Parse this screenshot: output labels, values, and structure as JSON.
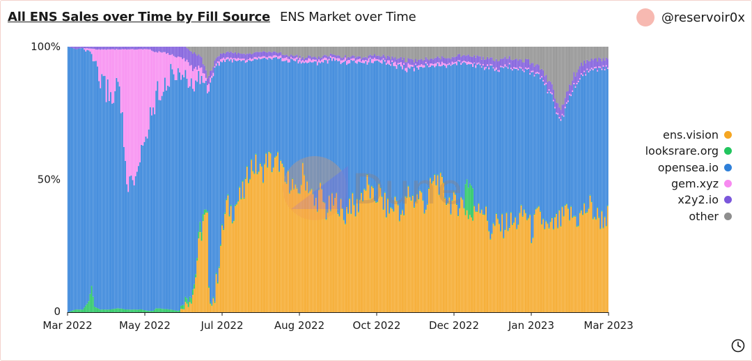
{
  "header": {
    "title": "All ENS Sales over Time by Fill Source",
    "subtitle": "ENS Market over Time",
    "author": "@reservoir0x"
  },
  "watermark": "Dune",
  "colors": {
    "ens.vision": "#F5A623",
    "looksrare.org": "#22C55E",
    "opensea.io": "#2F80D9",
    "gem.xyz": "#F78AF0",
    "x2y2.io": "#7B57DB",
    "other": "#8E8E8E"
  },
  "chart_data": {
    "type": "bar",
    "stacked": true,
    "normalized": true,
    "title": "All ENS Sales over Time by Fill Source",
    "ylim": [
      0,
      100
    ],
    "yticks": [
      "0",
      "50%",
      "100%"
    ],
    "xticks": [
      "Mar 2022",
      "May 2022",
      "Jul 2022",
      "Aug 2022",
      "Oct 2022",
      "Dec 2022",
      "Jan 2023",
      "Mar 2023"
    ],
    "legend_position": "right",
    "legend": [
      "ens.vision",
      "looksrare.org",
      "opensea.io",
      "gem.xyz",
      "x2y2.io",
      "other"
    ],
    "x_start": "2022-03-01",
    "x_end": "2023-03-05",
    "series_anchors": {
      "ens.vision": [
        [
          0,
          0
        ],
        [
          76,
          0
        ],
        [
          78,
          2
        ],
        [
          82,
          4
        ],
        [
          86,
          9
        ],
        [
          88,
          20
        ],
        [
          92,
          34
        ],
        [
          95,
          35
        ],
        [
          96,
          6
        ],
        [
          100,
          5
        ],
        [
          104,
          25
        ],
        [
          108,
          40
        ],
        [
          112,
          38
        ],
        [
          116,
          42
        ],
        [
          120,
          45
        ],
        [
          124,
          55
        ],
        [
          128,
          55
        ],
        [
          132,
          52
        ],
        [
          136,
          58
        ],
        [
          140,
          55
        ],
        [
          144,
          57
        ],
        [
          148,
          48
        ],
        [
          152,
          50
        ],
        [
          156,
          42
        ],
        [
          160,
          52
        ],
        [
          164,
          48
        ],
        [
          168,
          40
        ],
        [
          172,
          45
        ],
        [
          176,
          38
        ],
        [
          180,
          40
        ],
        [
          184,
          42
        ],
        [
          188,
          35
        ],
        [
          192,
          42
        ],
        [
          196,
          38
        ],
        [
          200,
          44
        ],
        [
          204,
          48
        ],
        [
          208,
          42
        ],
        [
          212,
          45
        ],
        [
          216,
          40
        ],
        [
          220,
          38
        ],
        [
          224,
          42
        ],
        [
          228,
          35
        ],
        [
          232,
          45
        ],
        [
          236,
          42
        ],
        [
          240,
          44
        ],
        [
          244,
          40
        ],
        [
          248,
          48
        ],
        [
          252,
          50
        ],
        [
          256,
          45
        ],
        [
          260,
          42
        ],
        [
          264,
          40
        ],
        [
          268,
          42
        ],
        [
          272,
          38
        ],
        [
          276,
          35
        ],
        [
          280,
          42
        ],
        [
          284,
          38
        ],
        [
          288,
          30
        ],
        [
          292,
          33
        ],
        [
          296,
          32
        ],
        [
          300,
          34
        ],
        [
          304,
          33
        ],
        [
          308,
          35
        ],
        [
          312,
          38
        ],
        [
          316,
          30
        ],
        [
          320,
          36
        ],
        [
          324,
          34
        ],
        [
          328,
          30
        ],
        [
          332,
          33
        ],
        [
          336,
          34
        ],
        [
          340,
          37
        ],
        [
          344,
          36
        ],
        [
          348,
          35
        ],
        [
          352,
          38
        ],
        [
          356,
          40
        ],
        [
          360,
          36
        ],
        [
          364,
          35
        ],
        [
          367,
          36
        ]
      ],
      "looksrare.org": [
        [
          0,
          0
        ],
        [
          5,
          1
        ],
        [
          10,
          1
        ],
        [
          14,
          4
        ],
        [
          16,
          10
        ],
        [
          18,
          2
        ],
        [
          22,
          1
        ],
        [
          28,
          1
        ],
        [
          34,
          1.5
        ],
        [
          40,
          1
        ],
        [
          45,
          1
        ],
        [
          50,
          1
        ],
        [
          55,
          0.5
        ],
        [
          58,
          0.5
        ],
        [
          60,
          1.5
        ],
        [
          70,
          1
        ],
        [
          75,
          0.5
        ],
        [
          80,
          2
        ],
        [
          85,
          2
        ],
        [
          88,
          1
        ],
        [
          90,
          4
        ],
        [
          95,
          0.5
        ],
        [
          100,
          0.5
        ],
        [
          110,
          0.5
        ],
        [
          130,
          0.3
        ],
        [
          150,
          0.3
        ],
        [
          170,
          0.3
        ],
        [
          200,
          0.3
        ],
        [
          230,
          0.3
        ],
        [
          270,
          0.3
        ],
        [
          271,
          12
        ],
        [
          276,
          12
        ],
        [
          277,
          0.3
        ],
        [
          300,
          0.3
        ],
        [
          367,
          0.3
        ]
      ],
      "gem.xyz": [
        [
          0,
          0
        ],
        [
          10,
          0
        ],
        [
          12,
          1
        ],
        [
          16,
          2
        ],
        [
          18,
          8
        ],
        [
          20,
          10
        ],
        [
          25,
          14
        ],
        [
          30,
          18
        ],
        [
          35,
          12
        ],
        [
          38,
          35
        ],
        [
          40,
          52
        ],
        [
          45,
          52
        ],
        [
          48,
          45
        ],
        [
          50,
          38
        ],
        [
          55,
          28
        ],
        [
          60,
          16
        ],
        [
          65,
          12
        ],
        [
          70,
          8
        ],
        [
          75,
          5
        ],
        [
          80,
          8
        ],
        [
          85,
          6
        ],
        [
          90,
          4
        ],
        [
          95,
          2
        ],
        [
          100,
          1
        ],
        [
          110,
          1
        ],
        [
          130,
          0.5
        ],
        [
          160,
          1
        ],
        [
          200,
          1
        ],
        [
          250,
          1
        ],
        [
          300,
          0.5
        ],
        [
          367,
          0.5
        ]
      ],
      "x2y2.io": [
        [
          0,
          0
        ],
        [
          5,
          1
        ],
        [
          10,
          0.5
        ],
        [
          20,
          1
        ],
        [
          30,
          1
        ],
        [
          40,
          1
        ],
        [
          50,
          1
        ],
        [
          55,
          1
        ],
        [
          60,
          2
        ],
        [
          65,
          2
        ],
        [
          70,
          3
        ],
        [
          75,
          4
        ],
        [
          80,
          5
        ],
        [
          85,
          6
        ],
        [
          90,
          4
        ],
        [
          95,
          3
        ],
        [
          100,
          2
        ],
        [
          110,
          2
        ],
        [
          120,
          2
        ],
        [
          130,
          2
        ],
        [
          150,
          1
        ],
        [
          170,
          1
        ],
        [
          200,
          1
        ],
        [
          230,
          2
        ],
        [
          260,
          2
        ],
        [
          290,
          3
        ],
        [
          320,
          3
        ],
        [
          340,
          4
        ],
        [
          350,
          4
        ],
        [
          367,
          3
        ]
      ],
      "other": [
        [
          0,
          0
        ],
        [
          80,
          0
        ],
        [
          82,
          1
        ],
        [
          84,
          2
        ],
        [
          88,
          3
        ],
        [
          91,
          4
        ],
        [
          93,
          8
        ],
        [
          95,
          12
        ],
        [
          97,
          10
        ],
        [
          100,
          5
        ],
        [
          103,
          3
        ],
        [
          110,
          2
        ],
        [
          120,
          3
        ],
        [
          130,
          2
        ],
        [
          140,
          2
        ],
        [
          150,
          3
        ],
        [
          160,
          4
        ],
        [
          170,
          4
        ],
        [
          180,
          3
        ],
        [
          190,
          4
        ],
        [
          200,
          4
        ],
        [
          210,
          3
        ],
        [
          220,
          4
        ],
        [
          230,
          5
        ],
        [
          240,
          5
        ],
        [
          250,
          4
        ],
        [
          260,
          4
        ],
        [
          270,
          3
        ],
        [
          280,
          4
        ],
        [
          290,
          5
        ],
        [
          300,
          4
        ],
        [
          310,
          5
        ],
        [
          315,
          6
        ],
        [
          320,
          8
        ],
        [
          325,
          10
        ],
        [
          330,
          15
        ],
        [
          333,
          20
        ],
        [
          336,
          25
        ],
        [
          340,
          18
        ],
        [
          344,
          12
        ],
        [
          348,
          8
        ],
        [
          352,
          6
        ],
        [
          356,
          5
        ],
        [
          360,
          5
        ],
        [
          367,
          5
        ]
      ]
    }
  }
}
